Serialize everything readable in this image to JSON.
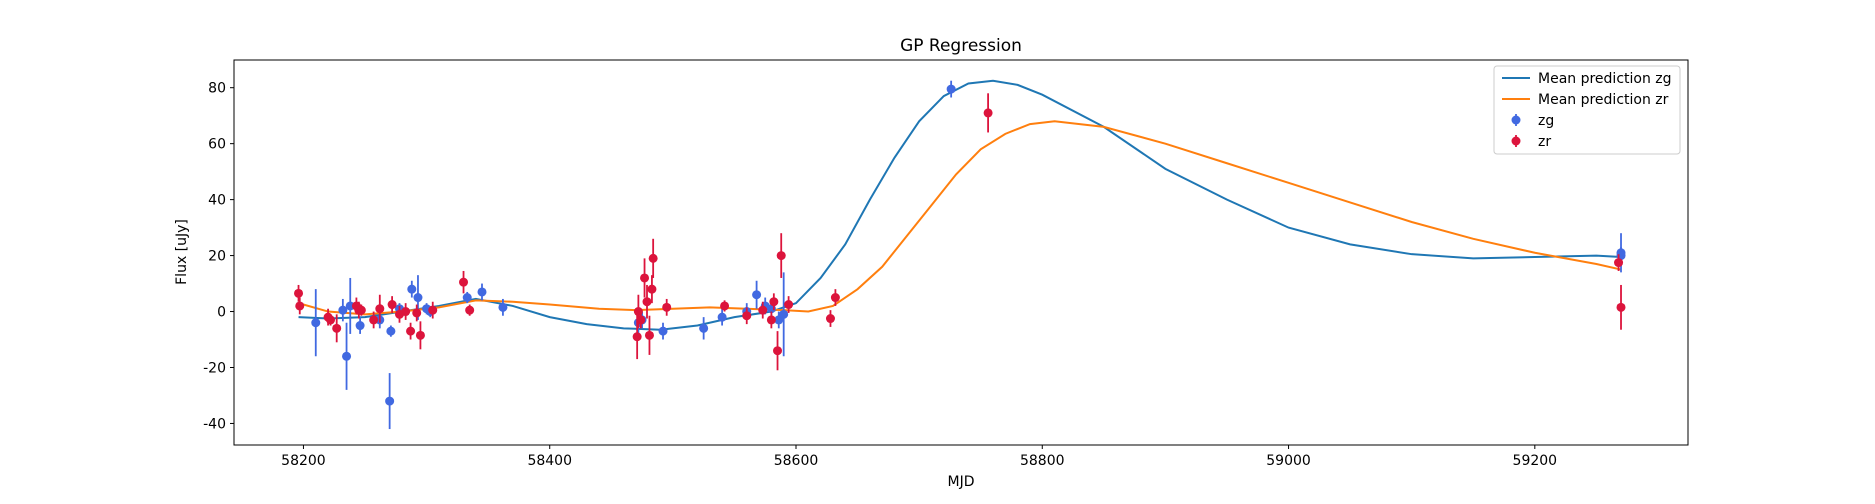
{
  "chart_data": {
    "type": "line",
    "title": "GP Regression",
    "x_label": "MJD",
    "y_label": "Flux [uJy]",
    "xlim": [
      58143.6,
      59324.4
    ],
    "ylim": [
      -47.7,
      89.9
    ],
    "xticks": [
      58200,
      58400,
      58600,
      58800,
      59000,
      59200
    ],
    "yticks": [
      -40,
      -20,
      0,
      20,
      40,
      60,
      80
    ],
    "legend": "upper right",
    "series": [
      {
        "name": "Mean prediction zg",
        "kind": "line",
        "color": "#1f77b4",
        "x": [
          58196,
          58220,
          58250,
          58280,
          58310,
          58340,
          58370,
          58400,
          58430,
          58460,
          58490,
          58520,
          58550,
          58580,
          58600,
          58620,
          58640,
          58660,
          58680,
          58700,
          58720,
          58740,
          58760,
          58780,
          58800,
          58850,
          58900,
          58950,
          59000,
          59050,
          59100,
          59150,
          59200,
          59250,
          59270
        ],
        "values": [
          -2,
          -2.5,
          -2,
          0,
          2,
          4.5,
          2,
          -2,
          -4.5,
          -6,
          -6.5,
          -5,
          -2,
          0,
          3,
          12,
          24,
          40,
          55,
          68,
          77,
          81.5,
          82.5,
          81,
          77.5,
          66,
          51,
          40,
          30,
          24,
          20.5,
          19,
          19.5,
          20,
          19.5
        ]
      },
      {
        "name": "Mean prediction zr",
        "kind": "line",
        "color": "#ff7f0e",
        "x": [
          58196,
          58220,
          58250,
          58280,
          58310,
          58340,
          58370,
          58400,
          58440,
          58470,
          58500,
          58530,
          58560,
          58590,
          58610,
          58630,
          58650,
          58670,
          58690,
          58710,
          58730,
          58750,
          58770,
          58790,
          58810,
          58850,
          58900,
          58950,
          59000,
          59050,
          59100,
          59150,
          59200,
          59250,
          59270
        ],
        "values": [
          3,
          0,
          -1,
          0,
          1.5,
          4,
          3.5,
          2.5,
          1,
          0.5,
          1,
          1.5,
          1,
          0.5,
          0,
          2,
          8,
          16,
          27,
          38,
          49,
          58,
          63.5,
          67,
          68,
          66,
          60,
          53,
          46,
          39,
          32,
          26,
          21,
          17,
          15
        ]
      },
      {
        "name": "zg",
        "kind": "errorbar",
        "color": "#4169e1",
        "x": [
          58210,
          58232,
          58235,
          58238,
          58246,
          58262,
          58270,
          58271,
          58278,
          58288,
          58293,
          58300,
          58303,
          58333,
          58345,
          58362,
          58472,
          58475,
          58492,
          58525,
          58540,
          58560,
          58568,
          58575,
          58580,
          58586,
          58590,
          58726,
          59270,
          59270
        ],
        "values": [
          -4,
          0.5,
          -16,
          2,
          -5,
          -3,
          -32,
          -7,
          1,
          8,
          5,
          1,
          0,
          5,
          7,
          1.5,
          -4,
          -3,
          -7,
          -6,
          -2,
          0,
          6,
          2,
          1,
          -3,
          -1,
          79.5,
          21,
          20
        ],
        "errors": [
          12,
          4,
          12,
          10,
          3,
          3,
          10,
          2,
          2,
          3,
          8,
          2,
          2,
          2,
          3,
          3,
          4,
          3,
          3,
          4,
          3,
          3,
          5,
          3,
          3,
          3,
          15,
          3,
          7,
          3
        ]
      },
      {
        "name": "zr",
        "kind": "errorbar",
        "color": "#dc143c",
        "x": [
          58196,
          58197,
          58220,
          58222,
          58227,
          58243,
          58245,
          58247,
          58257,
          58262,
          58272,
          58278,
          58283,
          58287,
          58292,
          58295,
          58305,
          58330,
          58335,
          58471,
          58472,
          58474,
          58477,
          58479,
          58481,
          58483,
          58484,
          58495,
          58542,
          58560,
          58573,
          58580,
          58582,
          58585,
          58588,
          58594,
          58628,
          58632,
          58756,
          59268,
          59270
        ],
        "values": [
          6.5,
          2,
          -2,
          -3,
          -6,
          2,
          0.5,
          0.5,
          -3,
          1,
          2.5,
          -1,
          0,
          -7,
          -0.5,
          -8.5,
          0.5,
          10.5,
          0.5,
          -9,
          0,
          -3,
          12,
          3.5,
          -8.5,
          8,
          19,
          1.5,
          2,
          -1.5,
          0.5,
          -3,
          3.5,
          -14,
          20,
          2.5,
          -2.5,
          5,
          71,
          17.5,
          1.5
        ],
        "errors": [
          3,
          3,
          3,
          2,
          5,
          3,
          3,
          2,
          3,
          5,
          3,
          3,
          3,
          3,
          3,
          5,
          3,
          4,
          2,
          8,
          6,
          3,
          7,
          6,
          7,
          5,
          7,
          3,
          2,
          3,
          3,
          3,
          3,
          7,
          8,
          3,
          3,
          3,
          7,
          3,
          8
        ]
      }
    ]
  }
}
